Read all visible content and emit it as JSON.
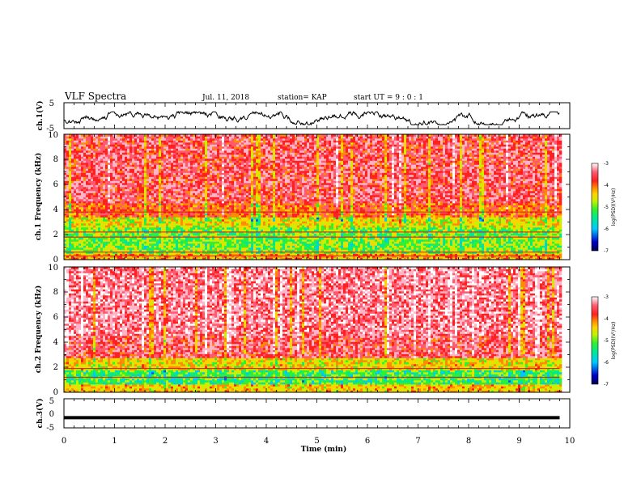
{
  "header": {
    "title": "VLF Spectra",
    "date": "Jul. 11, 2018",
    "station": "station= KAP",
    "start": "start UT = 9 : 0 : 1"
  },
  "colors": {
    "palette": [
      "#0000a0",
      "#0050ff",
      "#00c8ff",
      "#00e896",
      "#30f030",
      "#c8f000",
      "#ffd200",
      "#ff8c00",
      "#ff2020",
      "#ff5a6e",
      "#ffb4c8",
      "#ffffff"
    ],
    "trace": "#000000"
  },
  "chart_data": [
    {
      "type": "line",
      "name": "ch1-voltage",
      "ylabel": "ch.1(V)",
      "yticks": [
        "5",
        "-5"
      ],
      "ylim": [
        -5,
        5
      ],
      "xlim": [
        0,
        10
      ],
      "trace_level_range": [
        -3.5,
        1.5
      ],
      "data_end": 9.8
    },
    {
      "type": "heatmap",
      "name": "ch1-spectrogram",
      "ylabel": "ch.1 Frequency (kHz)",
      "yticks": [
        "0",
        "2",
        "4",
        "6",
        "8",
        "10"
      ],
      "ylim": [
        0,
        10
      ],
      "xlim": [
        0,
        10
      ],
      "data_end": 9.8,
      "value_label": "log(PSD)(V²/Hz)",
      "value_range": [
        -7,
        -3
      ],
      "colorbar_ticks": [
        "-3",
        "-4",
        "-5",
        "-6",
        "-7"
      ],
      "bands": [
        {
          "from": 0,
          "to": 0.5,
          "level": -4.6
        },
        {
          "from": 0.5,
          "to": 1.0,
          "level": -5.3
        },
        {
          "from": 1.0,
          "to": 2.6,
          "level": -5.4
        },
        {
          "from": 2.6,
          "to": 3.4,
          "level": -5.0
        },
        {
          "from": 3.4,
          "to": 4.5,
          "level": -4.3
        },
        {
          "from": 4.5,
          "to": 10.0,
          "level": -3.9
        }
      ],
      "lines_khz": [
        0.3,
        0.6,
        1.8,
        2.2,
        3.8
      ]
    },
    {
      "type": "heatmap",
      "name": "ch2-spectrogram",
      "ylabel": "ch.2 Frequency (kHz)",
      "yticks": [
        "0",
        "2",
        "4",
        "6",
        "8",
        "10"
      ],
      "ylim": [
        0,
        10
      ],
      "xlim": [
        0,
        10
      ],
      "data_end": 9.8,
      "value_label": "log(PSD)(V²/Hz)",
      "value_range": [
        -7,
        -3
      ],
      "colorbar_ticks": [
        "-3",
        "-4",
        "-5",
        "-6",
        "-7"
      ],
      "bands": [
        {
          "from": 0,
          "to": 0.6,
          "level": -4.8
        },
        {
          "from": 0.6,
          "to": 1.8,
          "level": -5.6
        },
        {
          "from": 1.8,
          "to": 2.8,
          "level": -4.9
        },
        {
          "from": 2.8,
          "to": 4.5,
          "level": -3.9
        },
        {
          "from": 4.5,
          "to": 10.0,
          "level": -3.7
        }
      ],
      "lines_khz": [
        1.2,
        1.9
      ]
    },
    {
      "type": "line",
      "name": "ch3-voltage",
      "ylabel": "ch.3(V)",
      "yticks": [
        "5",
        "0",
        "-5"
      ],
      "ylim": [
        -5,
        5
      ],
      "xlim": [
        0,
        10
      ],
      "trace_level": -1.5,
      "data_end": 9.8
    }
  ],
  "xaxis": {
    "label": "Time (min)",
    "ticks": [
      "0",
      "1",
      "2",
      "3",
      "4",
      "5",
      "6",
      "7",
      "8",
      "9",
      "10"
    ]
  }
}
